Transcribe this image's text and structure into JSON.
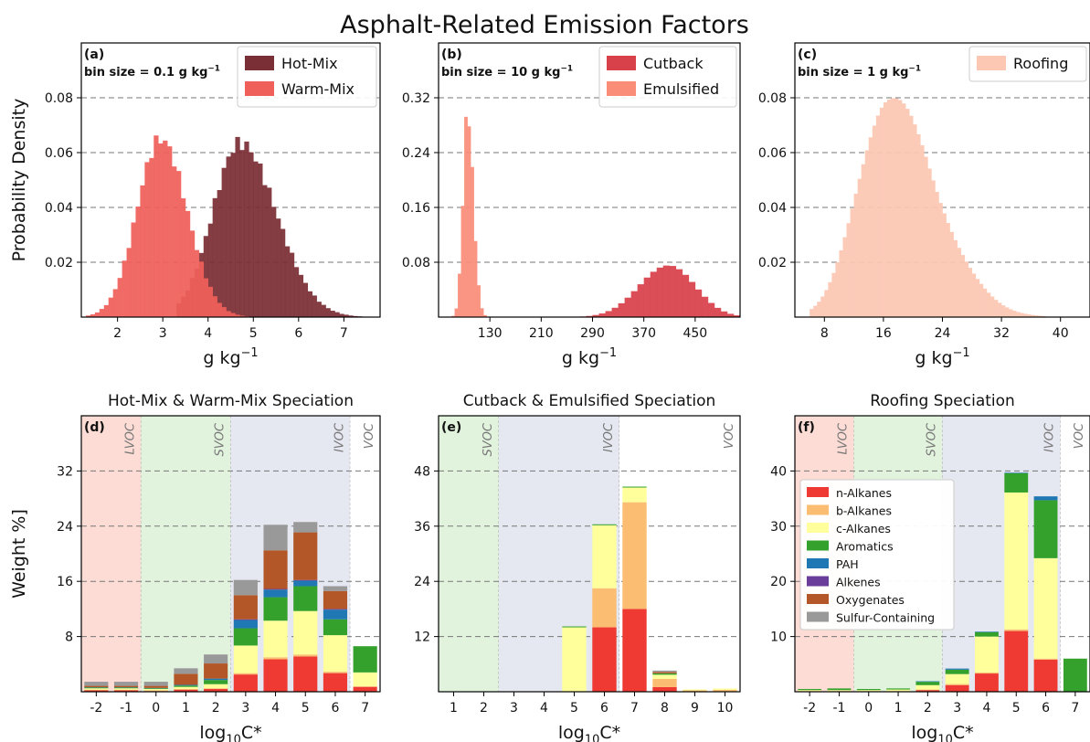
{
  "figure": {
    "title": "Asphalt-Related Emission Factors"
  },
  "colors": {
    "hot_mix": "#7a2e35",
    "warm_mix": "#f0605a",
    "cutback": "#d8414a",
    "emulsified": "#f98d78",
    "roofing": "#fcc7b3",
    "lvoc_band": "#fcdcd5",
    "svoc_band": "#e1f3dd",
    "ivoc_band": "#e5e7f1",
    "n_alkanes": "#ee3a32",
    "b_alkanes": "#fbbd72",
    "c_alkanes": "#ffff9c",
    "aromatics": "#33a12c",
    "pah": "#1f77b4",
    "alkenes": "#6a3d9a",
    "oxygenates": "#b35728",
    "sulfur": "#999999"
  },
  "chart_data": [
    {
      "id": "a",
      "type": "histogram",
      "panel_label": "(a)",
      "bin_note": "bin size = 0.1 g kg",
      "bin_note_sup": "−1",
      "xlabel": "g kg",
      "xlabel_sup": "−1",
      "ylabel": "Probability Density",
      "xlim": [
        1.2,
        7.8
      ],
      "ylim": [
        0,
        0.1
      ],
      "xticks": [
        2,
        3,
        4,
        5,
        6,
        7
      ],
      "yticks": [
        0.02,
        0.04,
        0.06,
        0.08
      ],
      "ytick_labels": [
        "0.02",
        "0.04",
        "0.06",
        "0.08"
      ],
      "grid": "horizontal dashed",
      "legend_position": "top-right",
      "series": [
        {
          "name": "Hot-Mix",
          "color": "#7a2e35",
          "peak_x": 4.7,
          "peak_y": 0.0635,
          "sd_left": 0.6,
          "sd_right": 0.8,
          "x_from": 3.3,
          "x_to": 7.7,
          "bin": 0.1
        },
        {
          "name": "Warm-Mix",
          "color": "#f0605a",
          "peak_x": 2.95,
          "peak_y": 0.065,
          "sd_left": 0.52,
          "sd_right": 0.58,
          "x_from": 1.3,
          "x_to": 5.1,
          "bin": 0.1
        }
      ]
    },
    {
      "id": "b",
      "type": "histogram",
      "panel_label": "(b)",
      "bin_note": "bin size = 10 g kg",
      "bin_note_sup": "−1",
      "xlabel": "g kg",
      "xlabel_sup": "−1",
      "ylabel": "",
      "xlim": [
        50,
        520
      ],
      "ylim": [
        0,
        0.4
      ],
      "xticks": [
        130,
        210,
        290,
        370,
        450
      ],
      "yticks": [
        0.08,
        0.16,
        0.24,
        0.32
      ],
      "ytick_labels": [
        "0.08",
        "0.16",
        "0.24",
        "0.32"
      ],
      "grid": "horizontal dashed",
      "legend_position": "top-right",
      "series": [
        {
          "name": "Cutback",
          "color": "#d8414a",
          "peak_x": 410,
          "peak_y": 0.078,
          "sd_left": 45,
          "sd_right": 40,
          "x_from": 240,
          "x_to": 520,
          "bin": 10
        },
        {
          "name": "Emulsified",
          "color": "#f98d78",
          "peak_x": 95,
          "peak_y": 0.3,
          "sd_left": 7,
          "sd_right": 9,
          "x_from": 60,
          "x_to": 140,
          "bin": 5
        }
      ]
    },
    {
      "id": "c",
      "type": "histogram",
      "panel_label": "(c)",
      "bin_note": "bin size = 1 g kg",
      "bin_note_sup": "−1",
      "xlabel": "g kg",
      "xlabel_sup": "−1",
      "ylabel": "",
      "xlim": [
        4,
        44
      ],
      "ylim": [
        0,
        0.1
      ],
      "xticks": [
        8,
        16,
        24,
        32,
        40
      ],
      "yticks": [
        0.02,
        0.04,
        0.06,
        0.08
      ],
      "ytick_labels": [
        "0.02",
        "0.04",
        "0.06",
        "0.08"
      ],
      "grid": "horizontal dashed",
      "legend_position": "top-right",
      "series": [
        {
          "name": "Roofing",
          "color": "#fcc7b3",
          "peak_x": 16.5,
          "peak_y": 0.08,
          "sd_left": 4,
          "sd_right": 6.5,
          "x_from": 6,
          "x_to": 42,
          "bin": 0.5
        }
      ]
    },
    {
      "id": "d",
      "type": "bar",
      "stacked": true,
      "panel_label": "(d)",
      "title": "Hot-Mix & Warm-Mix Speciation",
      "xlabel": "log",
      "xlabel_sub": "10",
      "xlabel_tail": "C*",
      "ylabel": "Weight %]",
      "categories": [
        "-2",
        "-1",
        "0",
        "1",
        "2",
        "3",
        "4",
        "5",
        "6",
        "7"
      ],
      "ylim": [
        0,
        40
      ],
      "yticks": [
        8,
        16,
        24,
        32
      ],
      "ytick_labels": [
        "8",
        "16",
        "24",
        "32"
      ],
      "grid": "horizontal dashed",
      "legend_position": "",
      "bands": [
        {
          "label": "LVOC",
          "from": -0.5,
          "to": 1.5,
          "color": "#fcdcd5"
        },
        {
          "label": "SVOC",
          "from": 1.5,
          "to": 4.5,
          "color": "#e1f3dd"
        },
        {
          "label": "IVOC",
          "from": 4.5,
          "to": 8.5,
          "color": "#e5e7f1"
        },
        {
          "label": "VOC",
          "from": 8.5,
          "to": 9.5,
          "color": "#ffffff"
        }
      ],
      "series": [
        {
          "name": "n-Alkanes",
          "color": "#ee3a32",
          "values": [
            0.2,
            0.2,
            0.1,
            0.3,
            0.4,
            2.5,
            4.7,
            5.1,
            2.7,
            0.7
          ]
        },
        {
          "name": "b-Alkanes",
          "color": "#fbbd72",
          "values": [
            0.1,
            0.1,
            0.1,
            0.1,
            0.1,
            0.2,
            0.3,
            0.3,
            0.2,
            0.1
          ]
        },
        {
          "name": "c-Alkanes",
          "color": "#ffff9c",
          "values": [
            0.2,
            0.2,
            0.2,
            0.3,
            0.6,
            4.0,
            5.3,
            6.3,
            5.3,
            2.0
          ]
        },
        {
          "name": "Aromatics",
          "color": "#33a12c",
          "values": [
            0.1,
            0.1,
            0.1,
            0.2,
            0.6,
            2.5,
            3.4,
            3.6,
            2.3,
            3.8
          ]
        },
        {
          "name": "PAH",
          "color": "#1f77b4",
          "values": [
            0.05,
            0.05,
            0.05,
            0.1,
            0.2,
            1.2,
            1.1,
            0.8,
            1.4,
            0
          ]
        },
        {
          "name": "Alkenes",
          "color": "#6a3d9a",
          "values": [
            0,
            0,
            0,
            0,
            0,
            0.1,
            0.1,
            0.1,
            0.1,
            0
          ]
        },
        {
          "name": "Oxygenates",
          "color": "#b35728",
          "values": [
            0.2,
            0.2,
            0.3,
            1.6,
            2.2,
            3.5,
            5.6,
            6.9,
            2.6,
            0
          ]
        },
        {
          "name": "Sulfur-Containing",
          "color": "#999999",
          "values": [
            0.6,
            0.6,
            0.6,
            0.8,
            1.3,
            2.2,
            3.7,
            1.5,
            0.7,
            0
          ]
        }
      ]
    },
    {
      "id": "e",
      "type": "bar",
      "stacked": true,
      "panel_label": "(e)",
      "title": "Cutback & Emulsified Speciation",
      "xlabel": "log",
      "xlabel_sub": "10",
      "xlabel_tail": "C*",
      "ylabel": "",
      "categories": [
        "1",
        "2",
        "3",
        "4",
        "5",
        "6",
        "7",
        "8",
        "9",
        "10"
      ],
      "ylim": [
        0,
        60
      ],
      "yticks": [
        12,
        24,
        36,
        48
      ],
      "ytick_labels": [
        "12",
        "24",
        "36",
        "48"
      ],
      "grid": "horizontal dashed",
      "legend_position": "",
      "bands": [
        {
          "label": "SVOC",
          "from": -0.5,
          "to": 1.5,
          "color": "#e1f3dd"
        },
        {
          "label": "IVOC",
          "from": 1.5,
          "to": 5.5,
          "color": "#e5e7f1"
        },
        {
          "label": "VOC",
          "from": 5.5,
          "to": 9.5,
          "color": "#ffffff"
        }
      ],
      "series": [
        {
          "name": "n-Alkanes",
          "color": "#ee3a32",
          "values": [
            0,
            0,
            0,
            0,
            0,
            14.0,
            18.0,
            1.0,
            0.1,
            0.1
          ]
        },
        {
          "name": "b-Alkanes",
          "color": "#fbbd72",
          "values": [
            0,
            0,
            0,
            0,
            0,
            8.5,
            23.2,
            1.8,
            0.2,
            0.3
          ]
        },
        {
          "name": "c-Alkanes",
          "color": "#ffff9c",
          "values": [
            0,
            0,
            0,
            0,
            14.0,
            13.7,
            3.2,
            0.9,
            0.2,
            0.3
          ]
        },
        {
          "name": "Aromatics",
          "color": "#33a12c",
          "values": [
            0,
            0,
            0,
            0,
            0.2,
            0.2,
            0.2,
            0.3,
            0,
            0
          ]
        },
        {
          "name": "PAH",
          "color": "#1f77b4",
          "values": [
            0,
            0,
            0,
            0,
            0,
            0,
            0,
            0,
            0,
            0
          ]
        },
        {
          "name": "Alkenes",
          "color": "#6a3d9a",
          "values": [
            0,
            0,
            0,
            0,
            0,
            0,
            0,
            0,
            0,
            0
          ]
        },
        {
          "name": "Oxygenates",
          "color": "#b35728",
          "values": [
            0,
            0,
            0,
            0,
            0,
            0,
            0,
            0.3,
            0,
            0
          ]
        },
        {
          "name": "Sulfur-Containing",
          "color": "#999999",
          "values": [
            0,
            0,
            0,
            0,
            0,
            0,
            0,
            0.3,
            0,
            0
          ]
        }
      ]
    },
    {
      "id": "f",
      "type": "bar",
      "stacked": true,
      "panel_label": "(f)",
      "title": "Roofing Speciation",
      "xlabel": "log",
      "xlabel_sub": "10",
      "xlabel_tail": "C*",
      "ylabel": "",
      "categories": [
        "-2",
        "-1",
        "0",
        "1",
        "2",
        "3",
        "4",
        "5",
        "6",
        "7"
      ],
      "ylim": [
        0,
        50
      ],
      "yticks": [
        10,
        20,
        30,
        40
      ],
      "ytick_labels": [
        "10",
        "20",
        "30",
        "40"
      ],
      "grid": "horizontal dashed",
      "legend_position": "left",
      "bands": [
        {
          "label": "LVOC",
          "from": -0.5,
          "to": 1.5,
          "color": "#fcdcd5"
        },
        {
          "label": "SVOC",
          "from": 1.5,
          "to": 4.5,
          "color": "#e1f3dd"
        },
        {
          "label": "IVOC",
          "from": 4.5,
          "to": 8.5,
          "color": "#e5e7f1"
        },
        {
          "label": "VOC",
          "from": 8.5,
          "to": 9.5,
          "color": "#ffffff"
        }
      ],
      "series": [
        {
          "name": "n-Alkanes",
          "color": "#ee3a32",
          "values": [
            0.1,
            0.1,
            0.1,
            0.1,
            0.3,
            1.2,
            3.3,
            11.0,
            5.8,
            0
          ]
        },
        {
          "name": "b-Alkanes",
          "color": "#fbbd72",
          "values": [
            0,
            0,
            0,
            0,
            0.1,
            0.2,
            0.2,
            0.3,
            0.2,
            0
          ]
        },
        {
          "name": "c-Alkanes",
          "color": "#ffff9c",
          "values": [
            0.2,
            0.2,
            0.2,
            0.3,
            0.8,
            1.8,
            6.5,
            24.8,
            18.2,
            0
          ]
        },
        {
          "name": "Aromatics",
          "color": "#33a12c",
          "values": [
            0.2,
            0.3,
            0.2,
            0.2,
            0.6,
            0.8,
            0.8,
            3.5,
            10.5,
            6.0
          ]
        },
        {
          "name": "PAH",
          "color": "#1f77b4",
          "values": [
            0,
            0,
            0,
            0,
            0.1,
            0.2,
            0.1,
            0.1,
            0.7,
            0
          ]
        },
        {
          "name": "Alkenes",
          "color": "#6a3d9a",
          "values": [
            0,
            0,
            0,
            0,
            0,
            0,
            0,
            0,
            0,
            0
          ]
        },
        {
          "name": "Oxygenates",
          "color": "#b35728",
          "values": [
            0,
            0,
            0,
            0,
            0,
            0,
            0,
            0,
            0,
            0
          ]
        },
        {
          "name": "Sulfur-Containing",
          "color": "#999999",
          "values": [
            0,
            0,
            0,
            0,
            0,
            0,
            0,
            0,
            0,
            0
          ]
        }
      ]
    }
  ]
}
